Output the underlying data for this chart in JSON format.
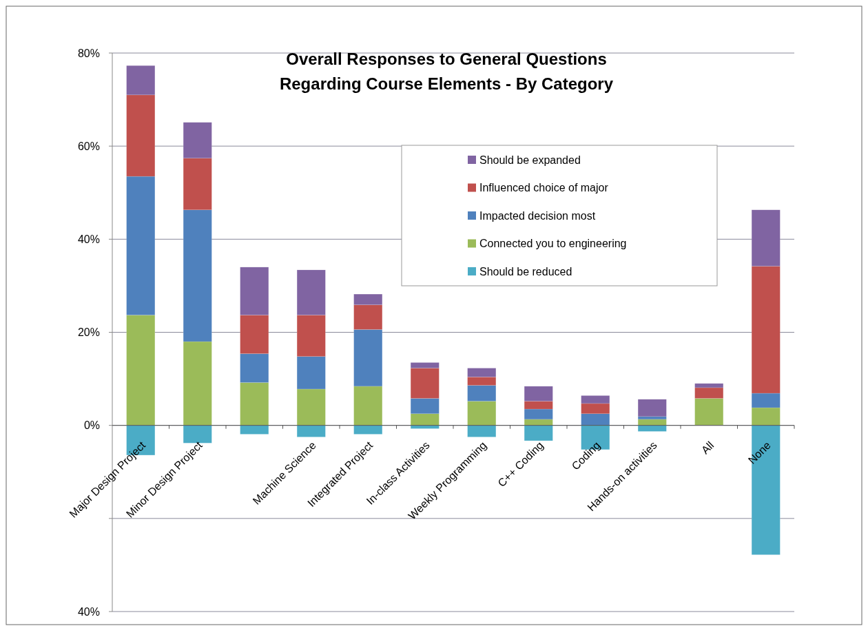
{
  "chart_data": {
    "type": "bar",
    "stacked": true,
    "title": "Overall Responses to General Questions\nRegarding Course Elements - By Category",
    "categories": [
      "Major Design Project",
      "Minor Design Project",
      null,
      "Machine Science",
      "Integrated Project",
      "In-class Activities",
      "Weekly Programming",
      "C++ Coding",
      "Coding",
      "Hands-on activities",
      "All",
      "None"
    ],
    "series": [
      {
        "name": "Should be reduced",
        "color": "#4bacc6",
        "values": [
          -6.4,
          -3.8,
          -1.9,
          -2.5,
          -1.9,
          -0.7,
          -2.5,
          -3.3,
          -5.2,
          -1.3,
          0,
          -27.8
        ]
      },
      {
        "name": "Connected you to engineering",
        "color": "#9bbb59",
        "values": [
          23.7,
          18.0,
          9.2,
          7.8,
          8.4,
          2.5,
          5.2,
          1.3,
          0,
          1.3,
          5.8,
          3.8
        ]
      },
      {
        "name": "Impacted decision most",
        "color": "#4f81bd",
        "values": [
          29.8,
          28.3,
          6.2,
          7.0,
          12.2,
          3.3,
          3.4,
          2.2,
          2.5,
          0.6,
          0,
          3.1
        ]
      },
      {
        "name": "Influenced choice of major",
        "color": "#c0504d",
        "values": [
          17.5,
          11.1,
          8.3,
          8.9,
          5.3,
          6.5,
          1.8,
          1.7,
          2.2,
          0,
          2.3,
          27.3
        ]
      },
      {
        "name": "Should be expanded",
        "color": "#8064a2",
        "values": [
          6.3,
          7.7,
          10.3,
          9.7,
          2.3,
          1.2,
          1.9,
          3.2,
          1.7,
          3.7,
          0.9,
          12.1
        ]
      }
    ],
    "ylim": [
      -40,
      80
    ],
    "yticks": [
      {
        "value": -40,
        "label": "40%"
      },
      {
        "value": -20,
        "label": null
      },
      {
        "value": 0,
        "label": "0%"
      },
      {
        "value": 20,
        "label": "20%"
      },
      {
        "value": 40,
        "label": "40%"
      },
      {
        "value": 60,
        "label": "60%"
      },
      {
        "value": 80,
        "label": "80%"
      }
    ],
    "grid": "y",
    "legend": "top right"
  }
}
